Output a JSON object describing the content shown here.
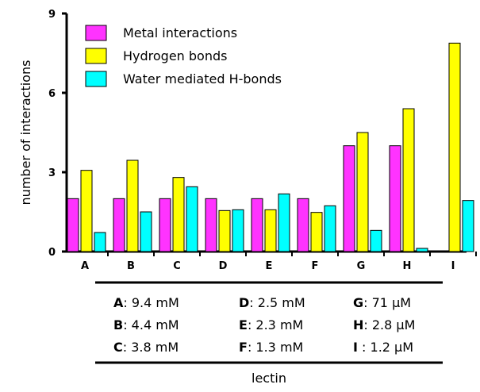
{
  "chart_data": {
    "type": "bar",
    "ylabel": "number of interactions",
    "xlabel": "lectin",
    "ylim": [
      0,
      9
    ],
    "yticks": [
      0,
      3,
      6,
      9
    ],
    "categories": [
      "A",
      "B",
      "C",
      "D",
      "E",
      "F",
      "G",
      "H",
      "I"
    ],
    "series": [
      {
        "name": "Metal interactions",
        "color": "#ff33ff",
        "values": [
          2,
          2,
          2,
          2,
          2,
          2,
          4,
          4,
          0
        ]
      },
      {
        "name": "Hydrogen bonds",
        "color": "#ffff00",
        "values": [
          3.07,
          3.45,
          2.8,
          1.55,
          1.58,
          1.48,
          4.5,
          5.4,
          7.88
        ]
      },
      {
        "name": "Water mediated H-bonds",
        "color": "#00ffff",
        "values": [
          0.72,
          1.5,
          2.45,
          1.58,
          2.18,
          1.73,
          0.8,
          0.12,
          1.93
        ]
      }
    ],
    "legend_position": "top-left",
    "affinity_table": [
      {
        "key": "A",
        "value": ": 9.4  mM"
      },
      {
        "key": "D",
        "value": ": 2.5 mM"
      },
      {
        "key": "G",
        "value": ": 71  μM"
      },
      {
        "key": "B",
        "value": ": 4.4  mM"
      },
      {
        "key": "E",
        "value": ": 2.3 mM"
      },
      {
        "key": "H",
        "value": ": 2.8 μM"
      },
      {
        "key": "C",
        "value": ": 3.8  mM"
      },
      {
        "key": "F",
        "value": ": 1.3 mM"
      },
      {
        "key": "I",
        "value": " : 1.2 μM"
      }
    ]
  }
}
